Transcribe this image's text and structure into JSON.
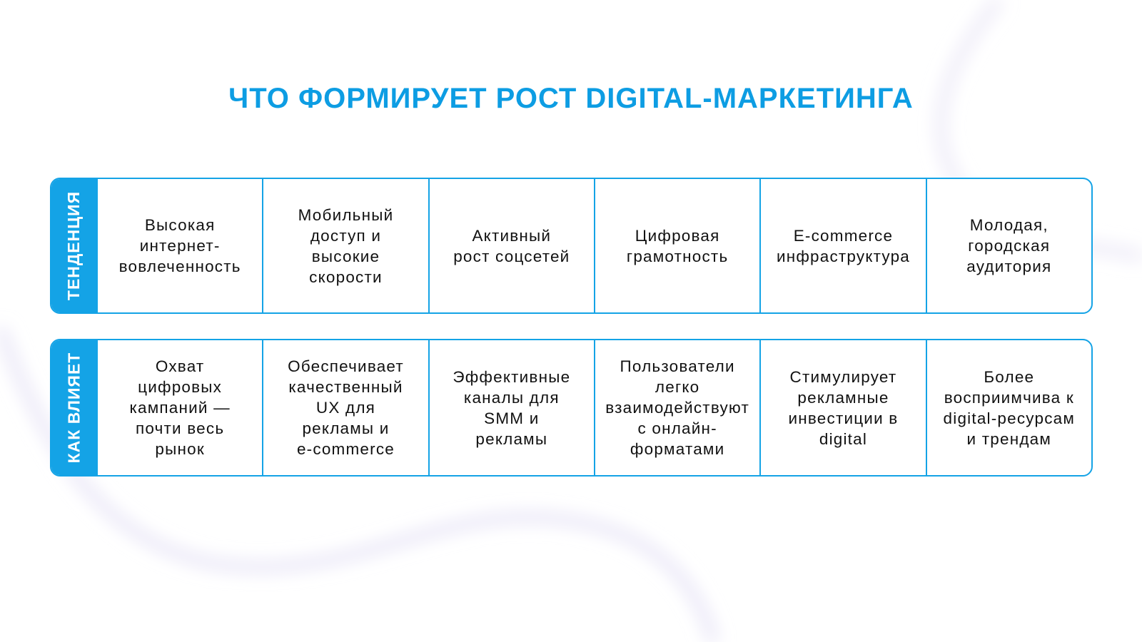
{
  "title": "ЧТО ФОРМИРУЕТ РОСТ DIGITAL-МАРКЕТИНГА",
  "colors": {
    "accent": "#14a3e6",
    "title": "#0d9de3"
  },
  "rows": [
    {
      "label": "ТЕНДЕНЦИЯ",
      "cells": [
        "Высокая\nинтернет-\nвовлеченность",
        "Мобильный\nдоступ и\nвысокие\nскорости",
        "Активный\nрост соцсетей",
        "Цифровая\nграмотность",
        "E-commerce\nинфраструктура",
        "Молодая,\nгородская\nаудитория"
      ]
    },
    {
      "label": "КАК ВЛИЯЕТ",
      "cells": [
        "Охват\nцифровых\nкампаний —\nпочти весь\nрынок",
        "Обеспечивает\nкачественный\nUX для\nрекламы и\ne-commerce",
        "Эффективные\nканалы для\nSMM и\nрекламы",
        "Пользователи\nлегко\nвзаимодействуют\nс онлайн-\nформатами",
        "Стимулирует\nрекламные\nинвестиции в\ndigital",
        "Более\nвосприимчива к\ndigital-ресурсам\nи трендам"
      ]
    }
  ]
}
